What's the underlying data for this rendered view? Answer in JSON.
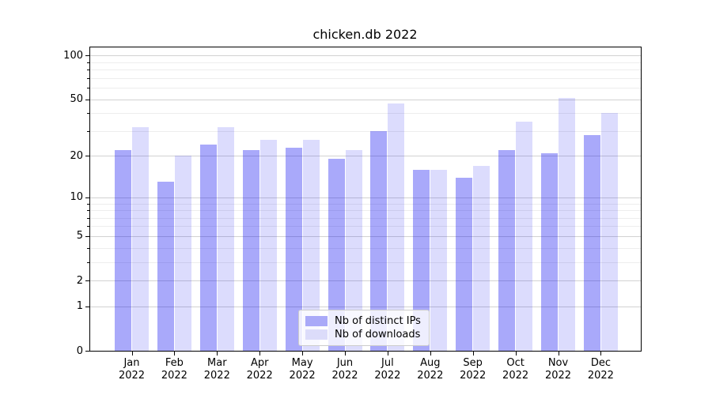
{
  "title": "chicken.db 2022",
  "chart_data": {
    "type": "bar",
    "title": "chicken.db 2022",
    "categories": [
      "Jan 2022",
      "Feb 2022",
      "Mar 2022",
      "Apr 2022",
      "May 2022",
      "Jun 2022",
      "Jul 2022",
      "Aug 2022",
      "Sep 2022",
      "Oct 2022",
      "Nov 2022",
      "Dec 2022"
    ],
    "series": [
      {
        "name": "Nb of distinct IPs",
        "color": "#a9a9f8",
        "fill": "#0a0af059",
        "values": [
          22,
          13,
          24,
          22,
          23,
          19,
          30,
          16,
          14,
          22,
          21,
          28
        ]
      },
      {
        "name": "Nb of downloads",
        "color": "#dcdcfa",
        "fill": "#0a0af024",
        "values": [
          32,
          20,
          32,
          26,
          26,
          22,
          47,
          16,
          17,
          35,
          51,
          40
        ]
      }
    ],
    "xlabel": "",
    "ylabel": "",
    "yscale": "log1p",
    "ylim": [
      0,
      115
    ],
    "yticks": [
      0,
      1,
      2,
      5,
      10,
      20,
      50,
      100
    ],
    "yticks_minor": [
      3,
      4,
      6,
      7,
      8,
      9,
      30,
      40,
      60,
      70,
      80,
      90
    ],
    "grid": true,
    "legend_position": "lower center",
    "colors": {
      "grid_major": "#d2d2d2",
      "grid_minor": "#ededed",
      "axis": "#000000",
      "background": "#ffffff"
    }
  }
}
